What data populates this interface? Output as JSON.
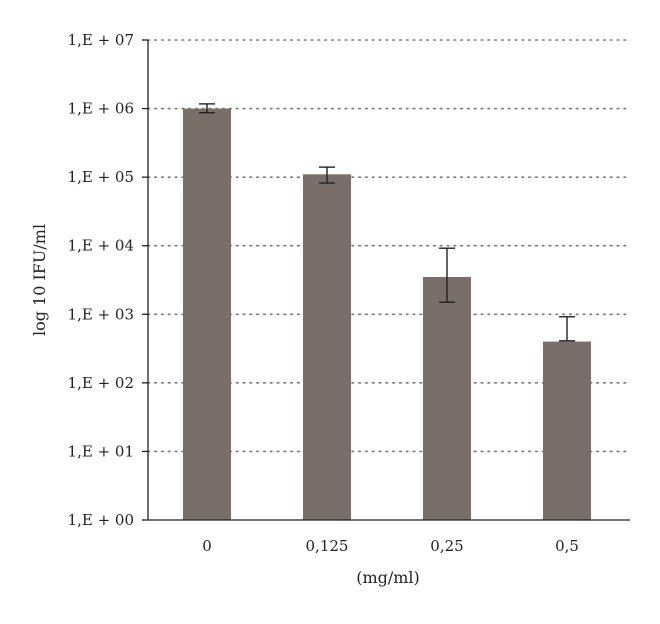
{
  "chart_data": {
    "type": "bar",
    "title": "",
    "xlabel": "(mg/ml)",
    "ylabel": "log 10 IFU/ml",
    "yscale": "log",
    "ylim": [
      1,
      10000000
    ],
    "ytick_values": [
      1,
      10,
      100,
      1000,
      10000,
      100000,
      1000000,
      10000000
    ],
    "ytick_labels": [
      "1,E + 00",
      "1,E + 01",
      "1,E + 02",
      "1,E + 03",
      "1,E + 04",
      "1,E + 05",
      "1,E + 06",
      "1,E + 07"
    ],
    "categories": [
      "0",
      "0,125",
      "0,25",
      "0,5"
    ],
    "values": [
      1000000,
      110000,
      3500,
      400
    ],
    "error_low": [
      870000,
      82000,
      1500,
      410
    ],
    "error_high": [
      1170000,
      140000,
      9200,
      920
    ],
    "grid": "horizontal dotted",
    "legend": "none",
    "bar_color": "#7a6e69",
    "axis_color": "#222222",
    "grid_color": "#777777"
  }
}
